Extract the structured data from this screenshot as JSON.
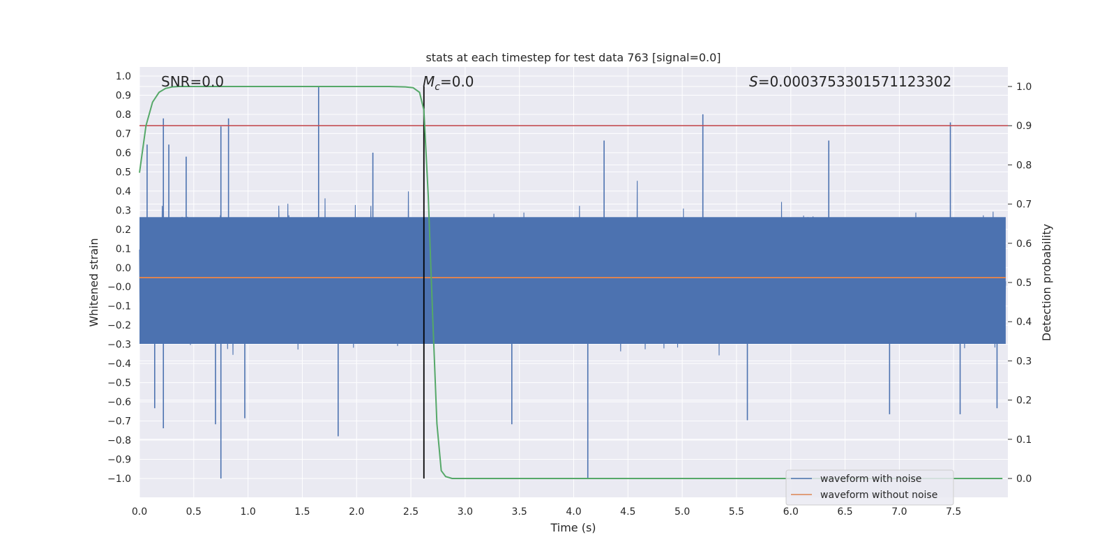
{
  "chart_data": {
    "type": "line",
    "title": "stats at each timestep for test data 763 [signal=0.0]",
    "xlabel": "Time (s)",
    "ylabel": "Whitened strain",
    "y2label": "Detection probability",
    "xlim": [
      0.0,
      8.0
    ],
    "ylim": [
      -1.09,
      1.05
    ],
    "y2lim": [
      -0.05,
      1.05
    ],
    "xticks": [
      "0.0",
      "0.5",
      "1.0",
      "1.5",
      "2.0",
      "2.5",
      "3.0",
      "3.5",
      "4.0",
      "4.5",
      "5.0",
      "5.5",
      "6.0",
      "6.5",
      "7.0",
      "7.5"
    ],
    "yticks": [
      "1.0",
      "0.9",
      "0.8",
      "0.7",
      "0.6",
      "0.5",
      "0.4",
      "0.3",
      "0.2",
      "0.1",
      "0.0",
      "-0.0",
      "-0.1",
      "-0.2",
      "-0.3",
      "-0.4",
      "-0.5",
      "-0.6",
      "-0.7",
      "-0.8",
      "-0.9",
      "-1.0"
    ],
    "y2ticks": [
      "1.0",
      "0.9",
      "0.8",
      "0.7",
      "0.6",
      "0.5",
      "0.4",
      "0.3",
      "0.2",
      "0.1",
      "0.0"
    ],
    "grid": true,
    "legend_position": "lower right",
    "annotations": {
      "snr": "SNR=0.0",
      "mc_symbol": "M",
      "mc_sub": "c",
      "mc_value": "=0.0",
      "s_symbol": "S",
      "s_value": "=0.0003753301571123302"
    },
    "series": [
      {
        "name": "waveform with noise",
        "color": "#4c72b0",
        "noise_std": 0.27,
        "spikes": [
          {
            "x": 0.07,
            "y": 0.66
          },
          {
            "x": 0.14,
            "y": -0.65
          },
          {
            "x": 0.22,
            "y": 0.79
          },
          {
            "x": 0.22,
            "y": -0.75
          },
          {
            "x": 0.27,
            "y": 0.66
          },
          {
            "x": 0.43,
            "y": 0.6
          },
          {
            "x": 0.7,
            "y": -0.73
          },
          {
            "x": 0.75,
            "y": 0.75
          },
          {
            "x": 0.75,
            "y": -1.0
          },
          {
            "x": 0.82,
            "y": 0.79
          },
          {
            "x": 0.97,
            "y": -0.7
          },
          {
            "x": 1.65,
            "y": 0.95
          },
          {
            "x": 1.83,
            "y": -0.79
          },
          {
            "x": 2.15,
            "y": 0.62
          },
          {
            "x": 3.43,
            "y": -0.73
          },
          {
            "x": 4.13,
            "y": -1.0
          },
          {
            "x": 4.28,
            "y": 0.68
          },
          {
            "x": 5.19,
            "y": 0.81
          },
          {
            "x": 5.6,
            "y": -0.71
          },
          {
            "x": 6.35,
            "y": 0.68
          },
          {
            "x": 6.91,
            "y": -0.68
          },
          {
            "x": 7.47,
            "y": 0.77
          },
          {
            "x": 7.56,
            "y": -0.68
          },
          {
            "x": 7.9,
            "y": -0.65
          }
        ]
      },
      {
        "name": "waveform without noise",
        "color": "#dd8452",
        "value": 0.0
      },
      {
        "name": "detection probability",
        "color": "#55a868",
        "x": [
          0.0,
          0.06,
          0.12,
          0.18,
          0.24,
          0.3,
          0.36,
          0.45,
          0.6,
          2.3,
          2.45,
          2.52,
          2.58,
          2.62,
          2.66,
          2.7,
          2.74,
          2.78,
          2.82,
          2.88,
          2.94,
          3.0,
          7.95
        ],
        "y": [
          0.78,
          0.9,
          0.96,
          0.985,
          0.995,
          0.999,
          1.0,
          1.0,
          1.0,
          1.0,
          0.999,
          0.997,
          0.985,
          0.94,
          0.72,
          0.42,
          0.14,
          0.02,
          0.005,
          0.0,
          0.0,
          0.0,
          0.0
        ]
      }
    ],
    "threshold": {
      "value": 0.9,
      "color": "#c44e52"
    },
    "marker_time": 2.62
  }
}
